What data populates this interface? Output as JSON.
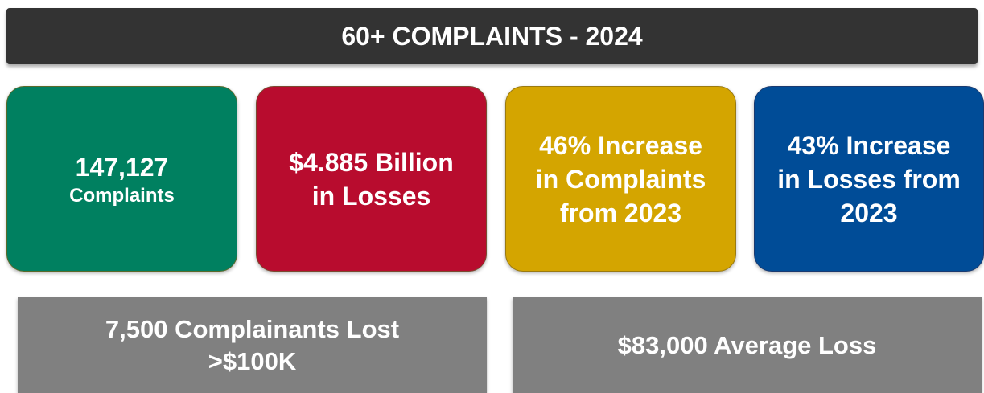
{
  "header": {
    "title": "60+ COMPLAINTS - 2024"
  },
  "cards": [
    {
      "lines": [
        "147,127",
        "Complaints"
      ]
    },
    {
      "lines": [
        "$4.885 Billion",
        "in Losses"
      ]
    },
    {
      "lines": [
        "46% Increase",
        "in Complaints",
        "from 2023"
      ]
    },
    {
      "lines": [
        "43% Increase",
        "in Losses from",
        "2023"
      ]
    }
  ],
  "footer": [
    {
      "lines": [
        "7,500 Complainants Lost",
        ">$100K"
      ]
    },
    {
      "lines": [
        "$83,000 Average Loss"
      ]
    }
  ]
}
